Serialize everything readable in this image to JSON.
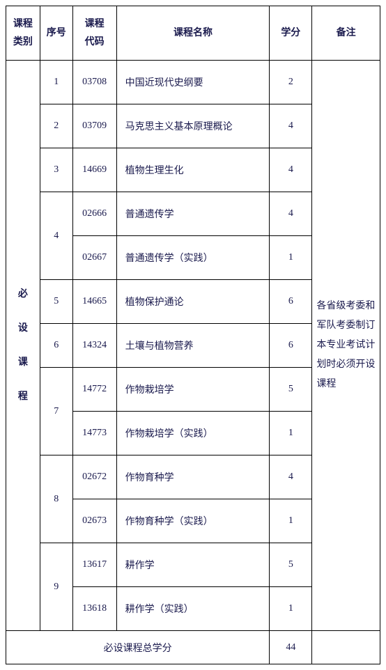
{
  "headers": {
    "category": "课程\n类别",
    "seq": "序号",
    "code": "课程\n代码",
    "name": "课程名称",
    "credit": "学分",
    "remark": "备注"
  },
  "category_label": "必\n设\n课\n程",
  "remark_text": "各省级考委和军队考委制订本专业考试计划时必须开设课程",
  "rows": [
    {
      "seq": "1",
      "code": "03708",
      "name": "中国近现代史纲要",
      "credit": "2"
    },
    {
      "seq": "2",
      "code": "03709",
      "name": "马克思主义基本原理概论",
      "credit": "4"
    },
    {
      "seq": "3",
      "code": "14669",
      "name": "植物生理生化",
      "credit": "4"
    },
    {
      "code": "02666",
      "name": "普通遗传学",
      "credit": "4"
    },
    {
      "seq": "4",
      "code": "02667",
      "name": "普通遗传学（实践）",
      "credit": "1"
    },
    {
      "seq": "5",
      "code": "14665",
      "name": "植物保护通论",
      "credit": "6"
    },
    {
      "seq": "6",
      "code": "14324",
      "name": "土壤与植物营养",
      "credit": "6"
    },
    {
      "code": "14772",
      "name": "作物栽培学",
      "credit": "5"
    },
    {
      "seq": "7",
      "code": "14773",
      "name": "作物栽培学（实践）",
      "credit": "1"
    },
    {
      "code": "02672",
      "name": "作物育种学",
      "credit": "4"
    },
    {
      "seq": "8",
      "code": "02673",
      "name": "作物育种学（实践）",
      "credit": "1"
    },
    {
      "code": "13617",
      "name": "耕作学",
      "credit": "5"
    },
    {
      "seq": "9",
      "code": "13618",
      "name": "耕作学（实践）",
      "credit": "1"
    }
  ],
  "total": {
    "label": "必设课程总学分",
    "value": "44"
  },
  "styling": {
    "border_color": "#000000",
    "text_color": "#1a1a4d",
    "background_color": "#ffffff",
    "font_family": "SimSun",
    "header_font_size": 14,
    "body_font_size": 14,
    "header_row_height": 78,
    "body_row_height": 63,
    "total_row_height": 48,
    "col_widths": {
      "category": 48,
      "seq": 46,
      "code": 62,
      "name": 216,
      "credit": 60,
      "remark": 96
    }
  }
}
